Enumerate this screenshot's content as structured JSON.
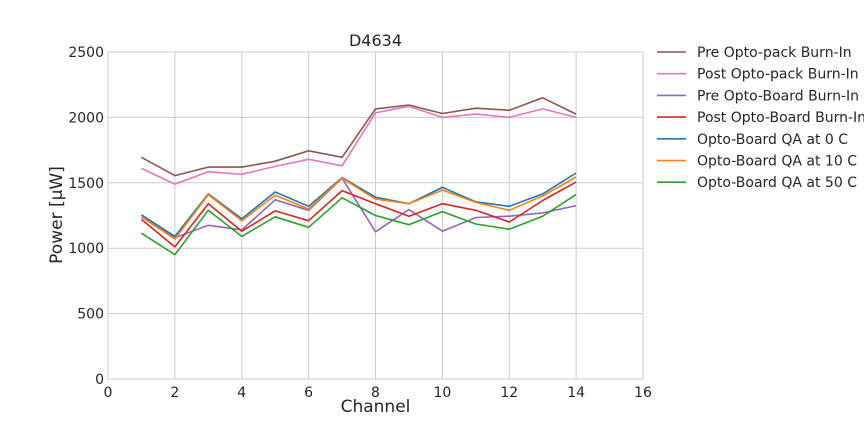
{
  "chart_data": {
    "type": "line",
    "title": "D4634",
    "xlabel": "Channel",
    "ylabel": "Power [μW]",
    "xlim": [
      0,
      16
    ],
    "ylim": [
      0,
      2500
    ],
    "xticks": [
      0,
      2,
      4,
      6,
      8,
      10,
      12,
      14,
      16
    ],
    "yticks": [
      0,
      500,
      1000,
      1500,
      2000,
      2500
    ],
    "grid": true,
    "legend_position": "outside-right",
    "x": [
      1,
      2,
      3,
      4,
      5,
      6,
      7,
      8,
      9,
      10,
      11,
      12,
      13,
      14
    ],
    "series": [
      {
        "name": "Pre Opto-pack Burn-In",
        "color": "#8c564b",
        "values": [
          1695,
          1555,
          1620,
          1620,
          1665,
          1745,
          1695,
          2065,
          2095,
          2030,
          2070,
          2055,
          2150,
          2025
        ]
      },
      {
        "name": "Post Opto-pack Burn-In",
        "color": "#e377c2",
        "values": [
          1610,
          1490,
          1585,
          1565,
          1625,
          1680,
          1630,
          2035,
          2085,
          2000,
          2025,
          2000,
          2065,
          2000
        ]
      },
      {
        "name": "Pre Opto-Board Burn-In",
        "color": "#9467bd",
        "values": [
          1240,
          1080,
          1175,
          1140,
          1370,
          1290,
          1535,
          1125,
          1295,
          1130,
          1235,
          1245,
          1270,
          1325
        ]
      },
      {
        "name": "Post Opto-Board Burn-In",
        "color": "#d62728",
        "values": [
          1220,
          1010,
          1340,
          1130,
          1285,
          1210,
          1440,
          1340,
          1245,
          1340,
          1290,
          1200,
          1365,
          1505
        ]
      },
      {
        "name": "Opto-Board QA at 0 C",
        "color": "#1f77b4",
        "values": [
          1255,
          1090,
          1415,
          1225,
          1430,
          1320,
          1540,
          1390,
          1340,
          1465,
          1355,
          1320,
          1415,
          1575
        ]
      },
      {
        "name": "Opto-Board QA at 10 C",
        "color": "#ff7f0e",
        "values": [
          1240,
          1070,
          1410,
          1210,
          1405,
          1300,
          1535,
          1375,
          1340,
          1445,
          1350,
          1290,
          1400,
          1545
        ]
      },
      {
        "name": "Opto-Board QA at 50 C",
        "color": "#2ca02c",
        "values": [
          1115,
          950,
          1290,
          1090,
          1240,
          1160,
          1385,
          1250,
          1180,
          1280,
          1185,
          1145,
          1245,
          1410
        ]
      }
    ]
  }
}
